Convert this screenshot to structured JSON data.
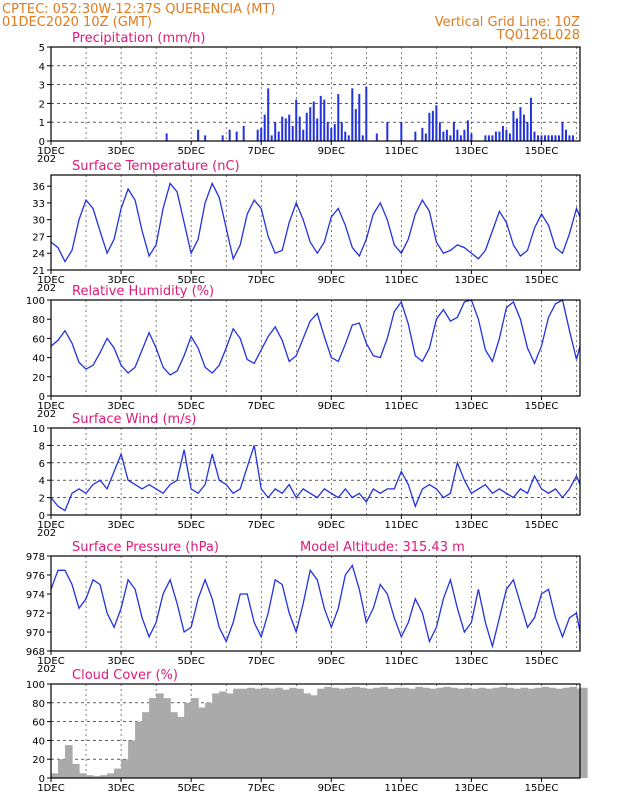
{
  "header": {
    "line1": "CPTEC:   052:30W-12:37S   QUERENCIA (MT)",
    "line2": "01DEC2020 10Z (GMT)",
    "grid_note": "Vertical Grid Line: 10Z",
    "code": "TQ0126L028"
  },
  "x_axis": {
    "labels": [
      "1DEC",
      "3DEC",
      "5DEC",
      "7DEC",
      "9DEC",
      "11DEC",
      "13DEC",
      "15DEC"
    ],
    "label_days": [
      0,
      2,
      4,
      6,
      8,
      10,
      12,
      14
    ],
    "start_day": 0,
    "end_day": 15.1,
    "clipped_year_label": "202"
  },
  "colors": {
    "header": "#e07b1f",
    "panel_title": "#e0197a",
    "line": "#2233dd",
    "bar": "#2233dd",
    "cloud": "#aaaaaa",
    "frame": "#000000"
  },
  "chart_data": [
    {
      "id": "precip",
      "type": "bar",
      "title": "Precipitation (mm/h)",
      "ylim": [
        0,
        5
      ],
      "yticks": [
        0,
        1,
        2,
        3,
        4,
        5
      ],
      "grid": "dashed",
      "x_day": [
        3.3,
        4.2,
        4.4,
        4.9,
        5.1,
        5.3,
        5.5,
        5.9,
        6.0,
        6.1,
        6.2,
        6.3,
        6.4,
        6.5,
        6.6,
        6.7,
        6.8,
        6.9,
        7.0,
        7.1,
        7.2,
        7.3,
        7.4,
        7.5,
        7.6,
        7.7,
        7.8,
        7.9,
        8.0,
        8.1,
        8.2,
        8.3,
        8.4,
        8.5,
        8.6,
        8.7,
        8.8,
        8.9,
        9.0,
        9.3,
        9.6,
        10.0,
        10.4,
        10.6,
        10.7,
        10.8,
        10.9,
        11.0,
        11.1,
        11.2,
        11.3,
        11.4,
        11.5,
        11.6,
        11.7,
        11.8,
        11.9,
        12.0,
        12.4,
        12.5,
        12.6,
        12.7,
        12.8,
        12.9,
        13.0,
        13.1,
        13.2,
        13.3,
        13.4,
        13.5,
        13.6,
        13.7,
        13.8,
        13.9,
        14.0,
        14.1,
        14.2,
        14.3,
        14.4,
        14.5,
        14.6,
        14.7,
        14.8,
        14.9
      ],
      "values": [
        0.4,
        0.6,
        0.3,
        0.3,
        0.6,
        0.5,
        0.8,
        0.6,
        0.7,
        1.4,
        2.8,
        0.3,
        1.0,
        0.5,
        1.3,
        1.2,
        1.4,
        0.8,
        2.2,
        1.3,
        0.6,
        1.5,
        1.8,
        2.1,
        1.2,
        2.4,
        2.2,
        1.0,
        0.7,
        0.9,
        2.5,
        1.0,
        0.5,
        0.3,
        2.8,
        1.7,
        2.5,
        0.3,
        2.9,
        0.4,
        1.0,
        1.0,
        0.5,
        0.7,
        0.4,
        1.5,
        1.6,
        1.9,
        1.0,
        0.5,
        0.6,
        0.3,
        1.0,
        0.6,
        0.3,
        0.6,
        1.1,
        0.4,
        0.3,
        0.3,
        0.3,
        0.5,
        0.5,
        0.8,
        0.6,
        0.4,
        1.6,
        1.2,
        1.8,
        1.4,
        1.0,
        2.3,
        0.5,
        0.3,
        0.3,
        0.3,
        0.3,
        0.3,
        0.3,
        0.3,
        1.0,
        0.6,
        0.3,
        0.3
      ]
    },
    {
      "id": "temp",
      "type": "line",
      "title": "Surface Temperature (nC)",
      "ylim": [
        21,
        38
      ],
      "yticks": [
        21,
        24,
        27,
        30,
        33,
        36
      ],
      "x_day": [
        0.0,
        0.2,
        0.4,
        0.6,
        0.8,
        1.0,
        1.2,
        1.4,
        1.6,
        1.8,
        2.0,
        2.2,
        2.4,
        2.6,
        2.8,
        3.0,
        3.2,
        3.4,
        3.6,
        3.8,
        4.0,
        4.2,
        4.4,
        4.6,
        4.8,
        5.0,
        5.2,
        5.4,
        5.6,
        5.8,
        6.0,
        6.2,
        6.4,
        6.6,
        6.8,
        7.0,
        7.2,
        7.4,
        7.6,
        7.8,
        8.0,
        8.2,
        8.4,
        8.6,
        8.8,
        9.0,
        9.2,
        9.4,
        9.6,
        9.8,
        10.0,
        10.2,
        10.4,
        10.6,
        10.8,
        11.0,
        11.2,
        11.4,
        11.6,
        11.8,
        12.0,
        12.2,
        12.4,
        12.6,
        12.8,
        13.0,
        13.2,
        13.4,
        13.6,
        13.8,
        14.0,
        14.2,
        14.4,
        14.6,
        14.8,
        15.0,
        15.1
      ],
      "values": [
        26.0,
        25.0,
        22.5,
        24.5,
        30.0,
        33.5,
        32.0,
        28.0,
        24.0,
        26.5,
        32.0,
        35.5,
        33.5,
        28.0,
        23.5,
        25.5,
        32.0,
        36.5,
        35.0,
        29.5,
        24.0,
        26.5,
        33.0,
        36.5,
        34.0,
        28.5,
        23.0,
        25.5,
        31.0,
        33.5,
        32.0,
        27.0,
        24.0,
        24.5,
        29.5,
        33.0,
        30.0,
        26.0,
        24.0,
        26.0,
        30.5,
        32.0,
        29.0,
        25.0,
        23.5,
        26.5,
        31.0,
        33.0,
        30.0,
        25.5,
        24.0,
        26.5,
        31.0,
        33.5,
        31.5,
        26.0,
        24.0,
        24.5,
        25.5,
        25.0,
        24.0,
        23.0,
        24.5,
        28.0,
        31.5,
        29.5,
        25.5,
        23.5,
        24.5,
        28.5,
        31.0,
        29.0,
        25.0,
        24.0,
        27.5,
        32.0,
        30.5
      ]
    },
    {
      "id": "rh",
      "type": "line",
      "title": "Relative Humidity (%)",
      "ylim": [
        0,
        100
      ],
      "yticks": [
        0,
        20,
        40,
        60,
        80,
        100
      ],
      "x_day": [
        0.0,
        0.2,
        0.4,
        0.6,
        0.8,
        1.0,
        1.2,
        1.4,
        1.6,
        1.8,
        2.0,
        2.2,
        2.4,
        2.6,
        2.8,
        3.0,
        3.2,
        3.4,
        3.6,
        3.8,
        4.0,
        4.2,
        4.4,
        4.6,
        4.8,
        5.0,
        5.2,
        5.4,
        5.6,
        5.8,
        6.0,
        6.2,
        6.4,
        6.6,
        6.8,
        7.0,
        7.2,
        7.4,
        7.6,
        7.8,
        8.0,
        8.2,
        8.4,
        8.6,
        8.8,
        9.0,
        9.2,
        9.4,
        9.6,
        9.8,
        10.0,
        10.2,
        10.4,
        10.6,
        10.8,
        11.0,
        11.2,
        11.4,
        11.6,
        11.8,
        12.0,
        12.2,
        12.4,
        12.6,
        12.8,
        13.0,
        13.2,
        13.4,
        13.6,
        13.8,
        14.0,
        14.2,
        14.4,
        14.6,
        14.8,
        15.0,
        15.1
      ],
      "values": [
        52.0,
        58.0,
        68.0,
        55.0,
        35.0,
        28.0,
        32.0,
        45.0,
        60.0,
        50.0,
        32.0,
        24.0,
        30.0,
        48.0,
        66.0,
        50.0,
        30.0,
        22.0,
        26.0,
        42.0,
        62.0,
        50.0,
        30.0,
        24.0,
        32.0,
        50.0,
        70.0,
        60.0,
        38.0,
        34.0,
        48.0,
        62.0,
        72.0,
        58.0,
        36.0,
        42.0,
        60.0,
        78.0,
        86.0,
        62.0,
        40.0,
        36.0,
        54.0,
        74.0,
        76.0,
        55.0,
        42.0,
        40.0,
        60.0,
        88.0,
        98.0,
        75.0,
        42.0,
        36.0,
        50.0,
        80.0,
        90.0,
        78.0,
        82.0,
        98.0,
        100.0,
        80.0,
        48.0,
        36.0,
        60.0,
        92.0,
        98.0,
        80.0,
        50.0,
        34.0,
        52.0,
        82.0,
        96.0,
        100.0,
        68.0,
        38.0,
        52.0
      ]
    },
    {
      "id": "wind",
      "type": "line",
      "title": "Surface Wind (m/s)",
      "ylim": [
        0,
        10
      ],
      "yticks": [
        0,
        2,
        4,
        6,
        8,
        10
      ],
      "grid": "dashed",
      "x_day": [
        0.0,
        0.2,
        0.4,
        0.6,
        0.8,
        1.0,
        1.2,
        1.4,
        1.6,
        1.8,
        2.0,
        2.2,
        2.4,
        2.6,
        2.8,
        3.0,
        3.2,
        3.4,
        3.6,
        3.8,
        4.0,
        4.2,
        4.4,
        4.6,
        4.8,
        5.0,
        5.2,
        5.4,
        5.6,
        5.8,
        6.0,
        6.2,
        6.4,
        6.6,
        6.8,
        7.0,
        7.2,
        7.4,
        7.6,
        7.8,
        8.0,
        8.2,
        8.4,
        8.6,
        8.8,
        9.0,
        9.2,
        9.4,
        9.6,
        9.8,
        10.0,
        10.2,
        10.4,
        10.6,
        10.8,
        11.0,
        11.2,
        11.4,
        11.6,
        11.8,
        12.0,
        12.2,
        12.4,
        12.6,
        12.8,
        13.0,
        13.2,
        13.4,
        13.6,
        13.8,
        14.0,
        14.2,
        14.4,
        14.6,
        14.8,
        15.0,
        15.1
      ],
      "values": [
        2.0,
        1.0,
        0.5,
        2.5,
        3.0,
        2.5,
        3.5,
        4.0,
        3.0,
        5.0,
        7.0,
        4.0,
        3.5,
        3.0,
        3.5,
        3.0,
        2.5,
        3.5,
        4.0,
        7.5,
        3.0,
        2.5,
        3.5,
        7.0,
        4.0,
        3.5,
        2.5,
        3.0,
        5.5,
        8.0,
        3.0,
        2.0,
        3.0,
        2.5,
        3.5,
        2.0,
        3.0,
        2.5,
        2.0,
        3.0,
        2.5,
        2.0,
        3.0,
        2.0,
        2.5,
        1.5,
        3.0,
        2.5,
        3.0,
        3.0,
        5.0,
        3.5,
        1.0,
        3.0,
        3.5,
        3.0,
        2.0,
        2.5,
        6.0,
        4.0,
        2.5,
        3.0,
        3.5,
        2.5,
        3.0,
        2.5,
        2.0,
        3.0,
        2.5,
        4.5,
        3.0,
        2.5,
        3.0,
        2.0,
        3.0,
        4.5,
        3.5
      ]
    },
    {
      "id": "pres",
      "type": "line",
      "title": "Surface Pressure (hPa)",
      "annotation": "Model Altitude: 315.43 m",
      "ylim": [
        968,
        978
      ],
      "yticks": [
        968,
        970,
        972,
        974,
        976,
        978
      ],
      "x_day": [
        0.0,
        0.2,
        0.4,
        0.6,
        0.8,
        1.0,
        1.2,
        1.4,
        1.6,
        1.8,
        2.0,
        2.2,
        2.4,
        2.6,
        2.8,
        3.0,
        3.2,
        3.4,
        3.6,
        3.8,
        4.0,
        4.2,
        4.4,
        4.6,
        4.8,
        5.0,
        5.2,
        5.4,
        5.6,
        5.8,
        6.0,
        6.2,
        6.4,
        6.6,
        6.8,
        7.0,
        7.2,
        7.4,
        7.6,
        7.8,
        8.0,
        8.2,
        8.4,
        8.6,
        8.8,
        9.0,
        9.2,
        9.4,
        9.6,
        9.8,
        10.0,
        10.2,
        10.4,
        10.6,
        10.8,
        11.0,
        11.2,
        11.4,
        11.6,
        11.8,
        12.0,
        12.2,
        12.4,
        12.6,
        12.8,
        13.0,
        13.2,
        13.4,
        13.6,
        13.8,
        14.0,
        14.2,
        14.4,
        14.6,
        14.8,
        15.0,
        15.1
      ],
      "values": [
        974.5,
        976.5,
        976.5,
        975.0,
        972.5,
        973.5,
        975.5,
        975.0,
        972.0,
        970.5,
        972.5,
        975.5,
        974.5,
        971.5,
        969.5,
        971.0,
        974.0,
        975.5,
        973.0,
        970.0,
        970.5,
        973.5,
        975.5,
        973.5,
        970.5,
        969.0,
        971.0,
        974.0,
        974.0,
        971.0,
        969.5,
        972.0,
        975.5,
        975.0,
        972.0,
        970.0,
        973.0,
        976.5,
        975.5,
        972.5,
        970.5,
        972.5,
        976.0,
        977.0,
        974.5,
        971.0,
        972.5,
        975.0,
        974.0,
        971.5,
        969.5,
        971.0,
        973.5,
        972.0,
        969.0,
        970.5,
        973.5,
        975.5,
        972.5,
        970.0,
        971.0,
        974.5,
        971.0,
        968.5,
        971.5,
        974.5,
        975.5,
        973.0,
        970.5,
        971.5,
        974.0,
        974.5,
        971.5,
        969.5,
        971.5,
        972.0,
        970.0
      ]
    },
    {
      "id": "cloud",
      "type": "bar",
      "title": "Cloud Cover (%)",
      "ylim": [
        0,
        100
      ],
      "yticks": [
        0,
        20,
        40,
        60,
        80,
        100
      ],
      "grid": "dashed",
      "x_day": [
        0.0,
        0.2,
        0.4,
        0.6,
        0.8,
        1.0,
        1.2,
        1.4,
        1.6,
        1.8,
        2.0,
        2.2,
        2.4,
        2.6,
        2.8,
        3.0,
        3.2,
        3.4,
        3.6,
        3.8,
        4.0,
        4.2,
        4.4,
        4.6,
        4.8,
        5.0,
        5.2,
        5.4,
        5.6,
        5.8,
        6.0,
        6.2,
        6.4,
        6.6,
        6.8,
        7.0,
        7.2,
        7.4,
        7.6,
        7.8,
        8.0,
        8.2,
        8.4,
        8.6,
        8.8,
        9.0,
        9.2,
        9.4,
        9.6,
        9.8,
        10.0,
        10.2,
        10.4,
        10.6,
        10.8,
        11.0,
        11.2,
        11.4,
        11.6,
        11.8,
        12.0,
        12.2,
        12.4,
        12.6,
        12.8,
        13.0,
        13.2,
        13.4,
        13.6,
        13.8,
        14.0,
        14.2,
        14.4,
        14.6,
        14.8,
        15.0,
        15.1
      ],
      "values": [
        5.0,
        20.0,
        35.0,
        15.0,
        5.0,
        3.0,
        2.0,
        3.0,
        5.0,
        10.0,
        20.0,
        40.0,
        60.0,
        70.0,
        85.0,
        90.0,
        85.0,
        70.0,
        65.0,
        80.0,
        85.0,
        75.0,
        80.0,
        90.0,
        92.0,
        90.0,
        95.0,
        95.0,
        96.0,
        95.0,
        96.0,
        95.0,
        96.0,
        94.0,
        96.0,
        95.0,
        90.0,
        88.0,
        95.0,
        97.0,
        96.0,
        95.0,
        96.0,
        97.0,
        96.0,
        95.0,
        96.0,
        97.0,
        95.0,
        96.0,
        96.0,
        95.0,
        97.0,
        96.0,
        95.0,
        96.0,
        97.0,
        96.0,
        95.0,
        96.0,
        95.0,
        96.0,
        95.0,
        96.0,
        97.0,
        96.0,
        95.0,
        96.0,
        95.0,
        96.0,
        97.0,
        96.0,
        95.0,
        96.0,
        97.0,
        95.0,
        96.0
      ]
    }
  ]
}
